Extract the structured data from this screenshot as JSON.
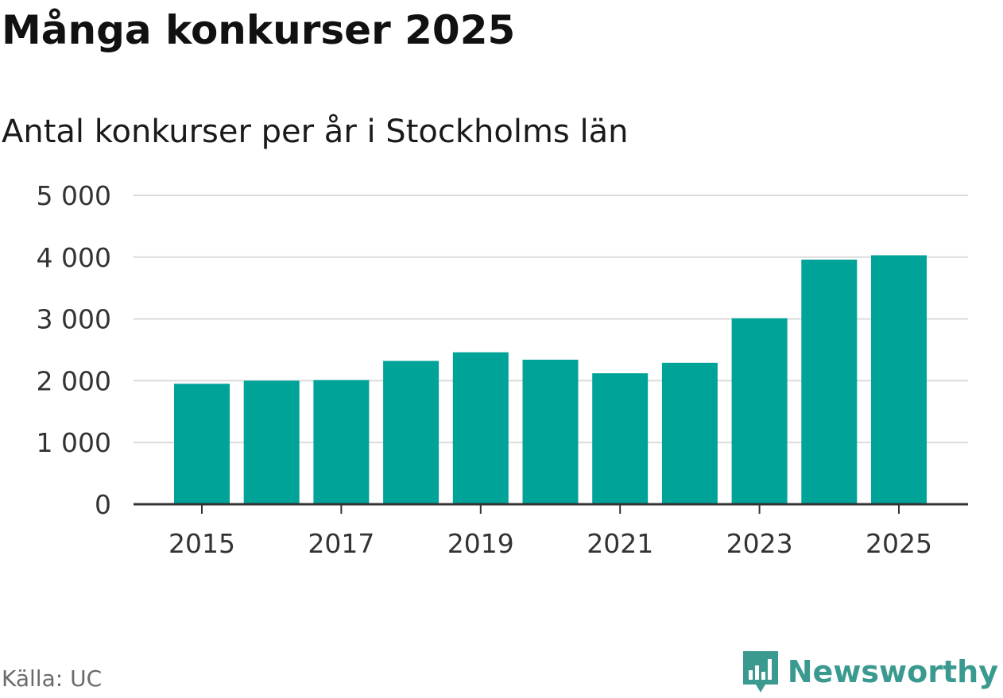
{
  "title": "Många konkurser 2025",
  "subtitle": "Antal konkurser per år i Stockholms län",
  "source": "Källa: UC",
  "brand": {
    "name": "Newsworthy",
    "logo_icon": "newsworthy-logo-icon"
  },
  "colors": {
    "bar": "#00a398",
    "grid": "#dcdcdc",
    "axis": "#333333",
    "brand": "#3a9a90"
  },
  "chart_data": {
    "type": "bar",
    "categories": [
      "2015",
      "2016",
      "2017",
      "2018",
      "2019",
      "2020",
      "2021",
      "2022",
      "2023",
      "2024",
      "2025"
    ],
    "values": [
      1950,
      2000,
      2010,
      2320,
      2460,
      2340,
      2120,
      2290,
      3010,
      3960,
      4030
    ],
    "x_tick_labels": [
      "2015",
      "2017",
      "2019",
      "2021",
      "2023",
      "2025"
    ],
    "y_ticks": [
      0,
      1000,
      2000,
      3000,
      4000,
      5000
    ],
    "y_tick_labels": [
      "0",
      "1 000",
      "2 000",
      "3 000",
      "4 000",
      "5 000"
    ],
    "ylim": [
      0,
      5000
    ],
    "grid": true
  }
}
